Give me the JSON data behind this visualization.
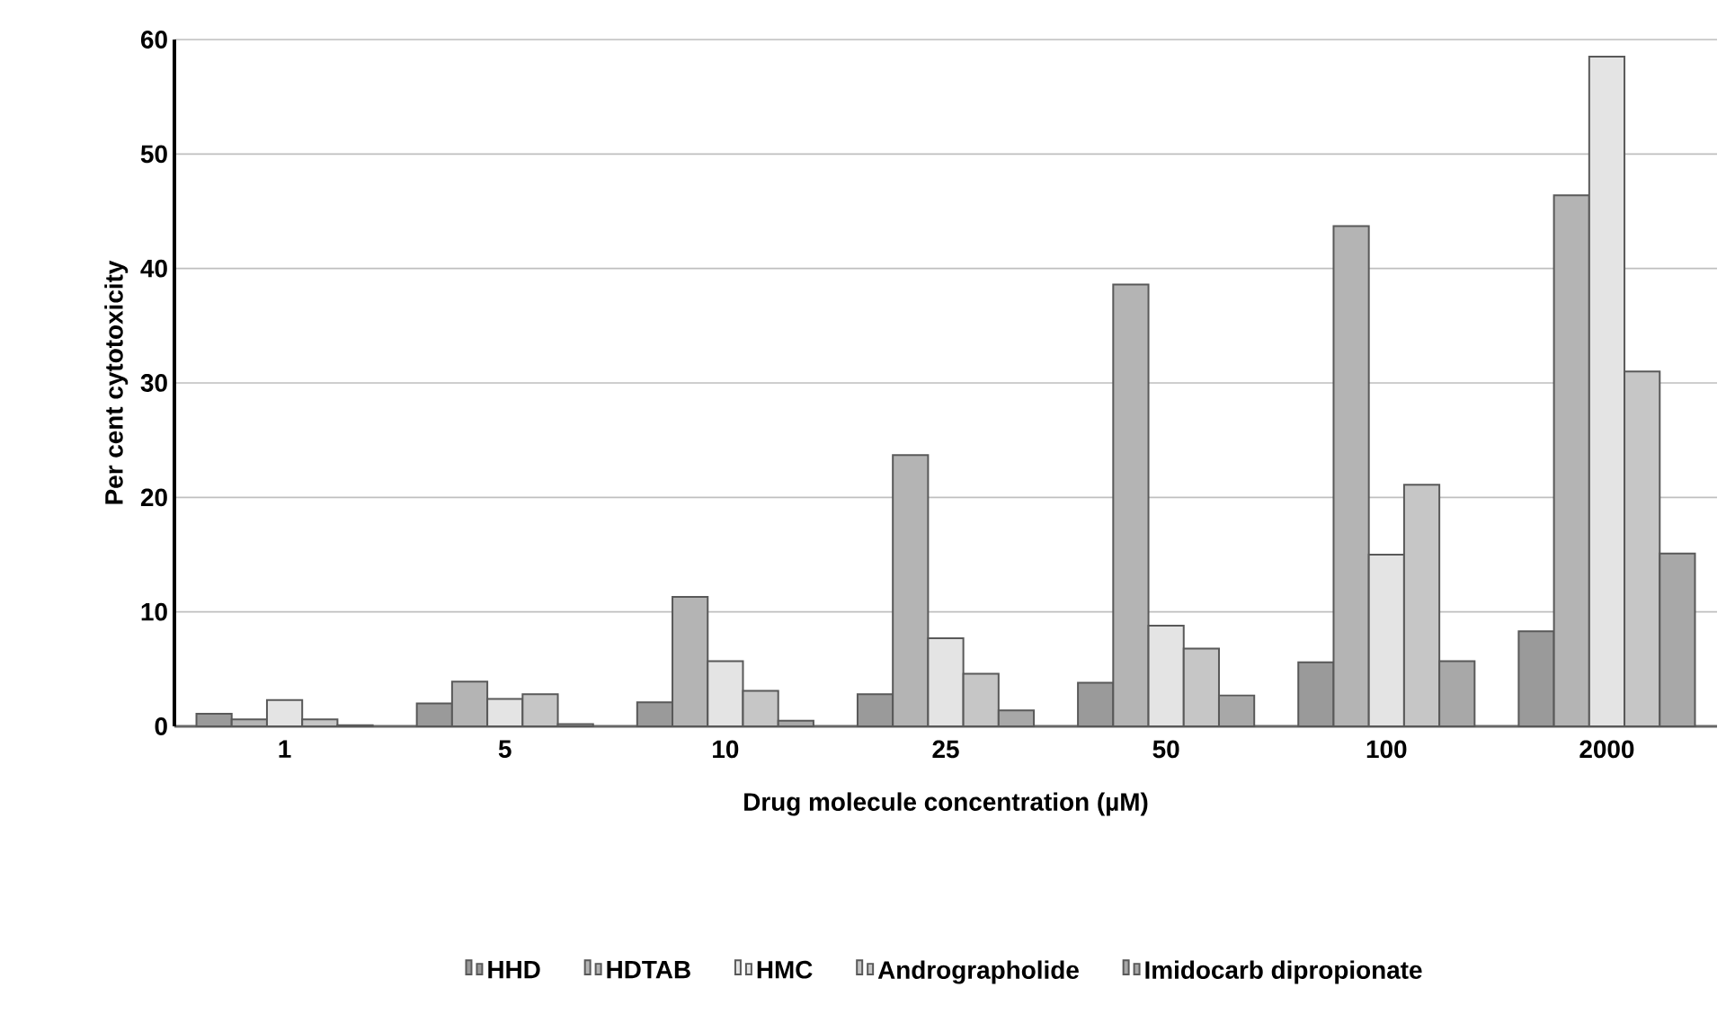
{
  "chart_data": {
    "type": "bar",
    "xlabel": "Drug molecule concentration (µM)",
    "ylabel": "Per cent cytotoxicity",
    "categories": [
      "1",
      "5",
      "10",
      "25",
      "50",
      "100",
      "2000"
    ],
    "series": [
      {
        "name": "HHD",
        "color": "#9a9a9a",
        "values": [
          1.1,
          2.0,
          2.1,
          2.8,
          3.8,
          5.6,
          8.3
        ]
      },
      {
        "name": "HDTAB",
        "color": "#b4b4b4",
        "values": [
          0.6,
          3.9,
          11.3,
          23.7,
          38.6,
          43.7,
          46.4
        ]
      },
      {
        "name": "HMC",
        "color": "#e4e4e4",
        "values": [
          2.3,
          2.4,
          5.7,
          7.7,
          8.8,
          15.0,
          58.5
        ]
      },
      {
        "name": "Andrographolide",
        "color": "#c6c6c6",
        "values": [
          0.6,
          2.8,
          3.1,
          4.6,
          6.8,
          21.1,
          31.0
        ]
      },
      {
        "name": "Imidocarb dipropionate",
        "color": "#a8a8a8",
        "values": [
          0.1,
          0.2,
          0.5,
          1.4,
          2.7,
          5.7,
          15.1
        ]
      }
    ],
    "ylim": [
      0,
      60
    ],
    "yticks": [
      0,
      10,
      20,
      30,
      40,
      50,
      60
    ],
    "grid": "y",
    "legend": "bottom"
  }
}
